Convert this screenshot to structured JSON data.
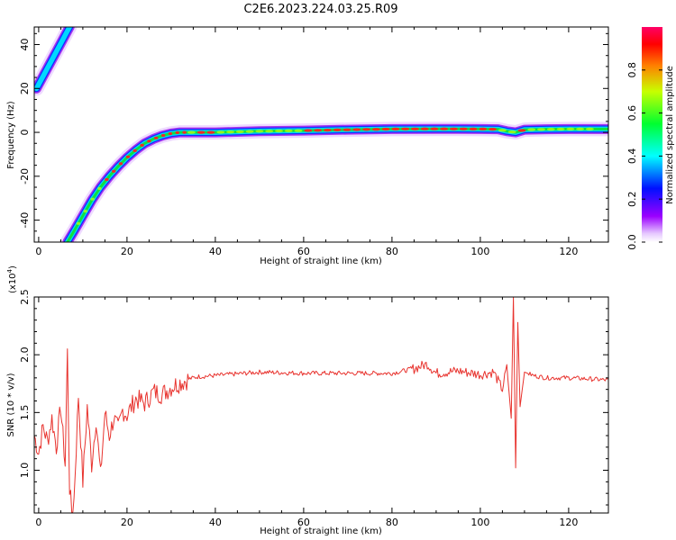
{
  "title": "C2E6.2023.224.03.25.R09",
  "colors": {
    "snr_line": "#e8332e",
    "frame": "#000000"
  },
  "chart_data": [
    {
      "type": "heatmap",
      "xlabel": "Height of straight line (km)",
      "ylabel": "Frequency (Hz)",
      "xlim": [
        -1,
        129
      ],
      "ylim": [
        -50,
        48
      ],
      "xticks": [
        0,
        20,
        40,
        60,
        80,
        100,
        120
      ],
      "yticks": [
        -40,
        -20,
        0,
        20,
        40
      ],
      "colorbar": {
        "label": "Normalized spectral amplitude",
        "range": [
          0,
          1
        ],
        "ticks": [
          "0.0",
          "0.2",
          "0.4",
          "0.6",
          "0.8"
        ],
        "colormap": "gist_rainbow reversed (white-violet low, red high)"
      },
      "ridges": [
        {
          "x": [
            -0.5,
            7.0
          ],
          "y": [
            20,
            48
          ],
          "peak_amplitude": 0.45
        },
        {
          "x": [
            6.5,
            8,
            10,
            12,
            14,
            16,
            18,
            20,
            22,
            24,
            26,
            28,
            30,
            32,
            34,
            40,
            50,
            60,
            70,
            80,
            90,
            100,
            104,
            106,
            108,
            110,
            115,
            120,
            129
          ],
          "y": [
            -50,
            -45,
            -38,
            -31,
            -25,
            -20,
            -15.5,
            -11.5,
            -8,
            -5,
            -3,
            -1.5,
            -0.5,
            0,
            0,
            0,
            0.5,
            0.8,
            1.2,
            1.5,
            1.6,
            1.5,
            1.4,
            0.5,
            0,
            1.2,
            1.4,
            1.5,
            1.5
          ],
          "peak_amplitude": 1.0
        }
      ]
    },
    {
      "type": "line",
      "xlabel": "Height of straight line (km)",
      "ylabel": "SNR (10 * v/v)",
      "y_multiplier_label": "(x10^4)",
      "xlim": [
        -1,
        129
      ],
      "ylim": [
        0.63,
        2.5
      ],
      "xticks": [
        0,
        20,
        40,
        60,
        80,
        100,
        120
      ],
      "yticks": [
        "1.0",
        "1.5",
        "2.0",
        "2.5"
      ],
      "series": [
        {
          "x": [
            -1,
            0,
            1,
            2,
            3,
            4,
            5,
            6,
            6.5,
            7,
            7.5,
            8,
            9,
            10,
            11,
            12,
            13,
            14,
            15,
            16,
            17,
            18,
            19,
            20,
            22,
            24,
            26,
            28,
            30,
            32,
            34,
            36,
            40,
            50,
            60,
            70,
            80,
            85,
            88,
            90,
            95,
            100,
            103,
            105,
            106,
            107,
            107.5,
            108,
            108.5,
            109,
            110,
            112,
            115,
            120,
            125,
            129
          ],
          "y": [
            1.3,
            1.15,
            1.38,
            1.25,
            1.45,
            1.2,
            1.55,
            1.05,
            2.02,
            0.85,
            0.63,
            0.75,
            1.65,
            0.9,
            1.55,
            1.05,
            1.45,
            0.95,
            1.5,
            1.3,
            1.45,
            1.35,
            1.52,
            1.48,
            1.62,
            1.58,
            1.68,
            1.66,
            1.72,
            1.76,
            1.79,
            1.81,
            1.82,
            1.85,
            1.84,
            1.84,
            1.84,
            1.88,
            1.92,
            1.84,
            1.86,
            1.83,
            1.85,
            1.7,
            1.9,
            1.45,
            2.5,
            1.02,
            2.28,
            1.55,
            1.85,
            1.82,
            1.8,
            1.8,
            1.79,
            1.78
          ]
        }
      ]
    }
  ]
}
